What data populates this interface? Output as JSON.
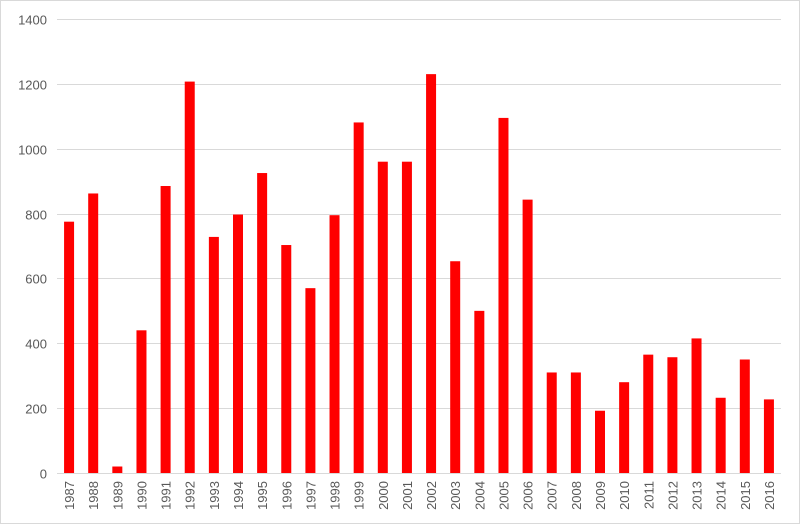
{
  "chart_data": {
    "type": "bar",
    "title": "",
    "xlabel": "",
    "ylabel": "",
    "ylim": [
      0,
      1400
    ],
    "yticks": [
      0,
      200,
      400,
      600,
      800,
      1000,
      1200,
      1400
    ],
    "grid": true,
    "legend": "none",
    "bar_color": "#ff0000",
    "gridline_color": "#d9d9d9",
    "categories": [
      "1987",
      "1988",
      "1989",
      "1990",
      "1991",
      "1992",
      "1993",
      "1994",
      "1995",
      "1996",
      "1997",
      "1998",
      "1999",
      "2000",
      "2001",
      "2002",
      "2003",
      "2004",
      "2005",
      "2006",
      "2007",
      "2008",
      "2009",
      "2010",
      "2011",
      "2012",
      "2013",
      "2014",
      "2015",
      "2016"
    ],
    "values": [
      775,
      862,
      20,
      440,
      885,
      1207,
      728,
      797,
      925,
      703,
      570,
      795,
      1081,
      960,
      960,
      1230,
      653,
      500,
      1095,
      843,
      310,
      310,
      192,
      280,
      365,
      357,
      415,
      232,
      350,
      227
    ]
  }
}
